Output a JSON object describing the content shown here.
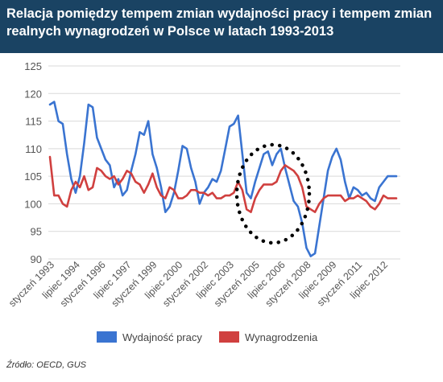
{
  "title": "Relacja pomiędzy tempem zmian wydajności pracy i tempem zmian realnych wynagrodzeń w Polsce w latach 1993-2013",
  "source": "Źródło: OECD, GUS",
  "colors": {
    "header": "#1a4363",
    "series1": "#3a74d1",
    "series2": "#d0403f",
    "annotation": "#000000"
  },
  "chart_data": {
    "type": "line",
    "ylim": [
      90,
      125
    ],
    "yticks": [
      90,
      95,
      100,
      105,
      110,
      115,
      120,
      125
    ],
    "grid": true,
    "legend_position": "bottom",
    "x_tick_labels": [
      "styczeń 1993",
      "lipiec 1994",
      "styczeń 1996",
      "lipiec 1997",
      "styczeń 1999",
      "lipiec 2000",
      "styczeń 2002",
      "lipiec 2003",
      "styczeń 2005",
      "lipiec 2006",
      "styczeń 2008",
      "lipiec 2009",
      "styczeń 2011",
      "lipiec 2012"
    ],
    "x_tick_index": [
      0,
      6,
      12,
      18,
      24,
      30,
      36,
      42,
      48,
      54,
      60,
      66,
      72,
      78
    ],
    "x_count": 82,
    "series": [
      {
        "name": "Wydajność pracy",
        "values": [
          118,
          118.5,
          115,
          114.5,
          109,
          104.5,
          102,
          105,
          111,
          118,
          117.5,
          112,
          110,
          108,
          107,
          103,
          104.5,
          101.5,
          102.5,
          106,
          109,
          113,
          112.5,
          115,
          109,
          106.5,
          103,
          98.5,
          99.5,
          102,
          106,
          110.5,
          110,
          106.5,
          104,
          100,
          102,
          103,
          104.5,
          104,
          106,
          110,
          114,
          114.5,
          116,
          109,
          102,
          101,
          104,
          106.5,
          109,
          109.5,
          107,
          109,
          110,
          106.5,
          103.5,
          100.5,
          99.5,
          96.5,
          92,
          90.5,
          91,
          96,
          101,
          106,
          108.5,
          110,
          108,
          104,
          101,
          103,
          102.5,
          101.5,
          102,
          101,
          100.5,
          103,
          104,
          105,
          105,
          105
        ]
      },
      {
        "name": "Wynagrodzenia",
        "values": [
          108.5,
          101.5,
          101.5,
          100,
          99.5,
          102.5,
          104,
          103,
          105,
          102.5,
          103,
          106.5,
          106,
          105,
          104.5,
          105,
          103.5,
          104.5,
          106,
          105.5,
          104,
          103.5,
          102,
          103.5,
          105.5,
          103,
          101.5,
          101,
          103,
          102.5,
          101,
          101,
          101.5,
          102.5,
          102.5,
          102,
          102,
          101.5,
          102,
          101,
          101,
          101.5,
          101.5,
          102,
          104,
          102.5,
          99,
          98.5,
          101,
          102.5,
          103.5,
          103.5,
          103.5,
          104,
          106,
          107,
          106.5,
          106,
          105,
          103,
          99.5,
          99,
          98.5,
          100,
          101,
          101.5,
          101.5,
          101.5,
          101.5,
          100.5,
          101,
          101,
          101.5,
          101,
          100.5,
          99.5,
          99,
          100,
          101.5,
          101,
          101,
          101
        ]
      }
    ],
    "annotation": "dotted-ellipse"
  }
}
